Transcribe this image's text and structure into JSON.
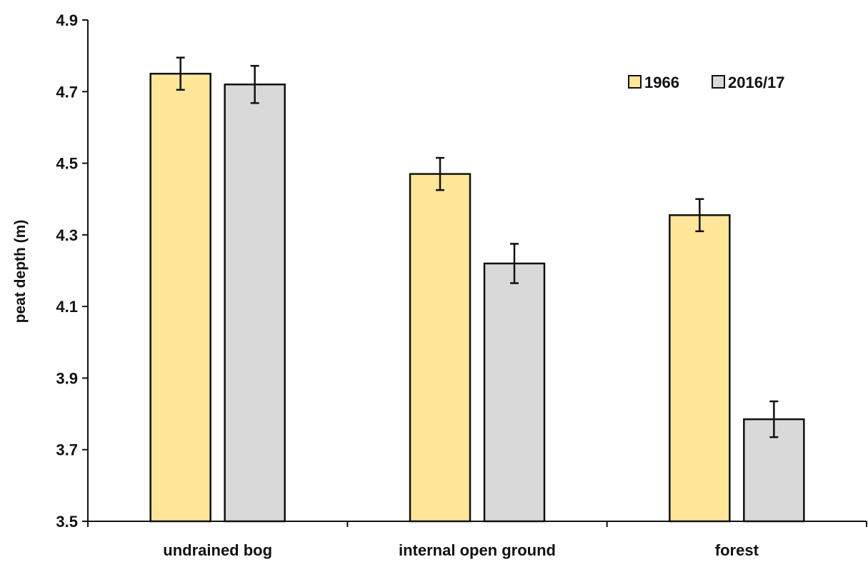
{
  "chart_data": {
    "type": "bar",
    "title": "",
    "xlabel": "",
    "ylabel": "peat depth (m)",
    "ylim": [
      3.5,
      4.9
    ],
    "yticks": [
      "3.5",
      "3.7",
      "3.9",
      "4.1",
      "4.3",
      "4.5",
      "4.7",
      "4.9"
    ],
    "categories": [
      "undrained bog",
      "internal open ground",
      "forest"
    ],
    "series": [
      {
        "name": "1966",
        "values": [
          4.75,
          4.47,
          4.355
        ],
        "errors": [
          0.045,
          0.045,
          0.045
        ],
        "color": "#FFE699"
      },
      {
        "name": "2016/17",
        "values": [
          4.72,
          4.22,
          3.785
        ],
        "errors": [
          0.052,
          0.055,
          0.05
        ],
        "color": "#D9D9D9"
      }
    ],
    "legend_position": "top-right",
    "grid": false,
    "error_bars": true
  }
}
